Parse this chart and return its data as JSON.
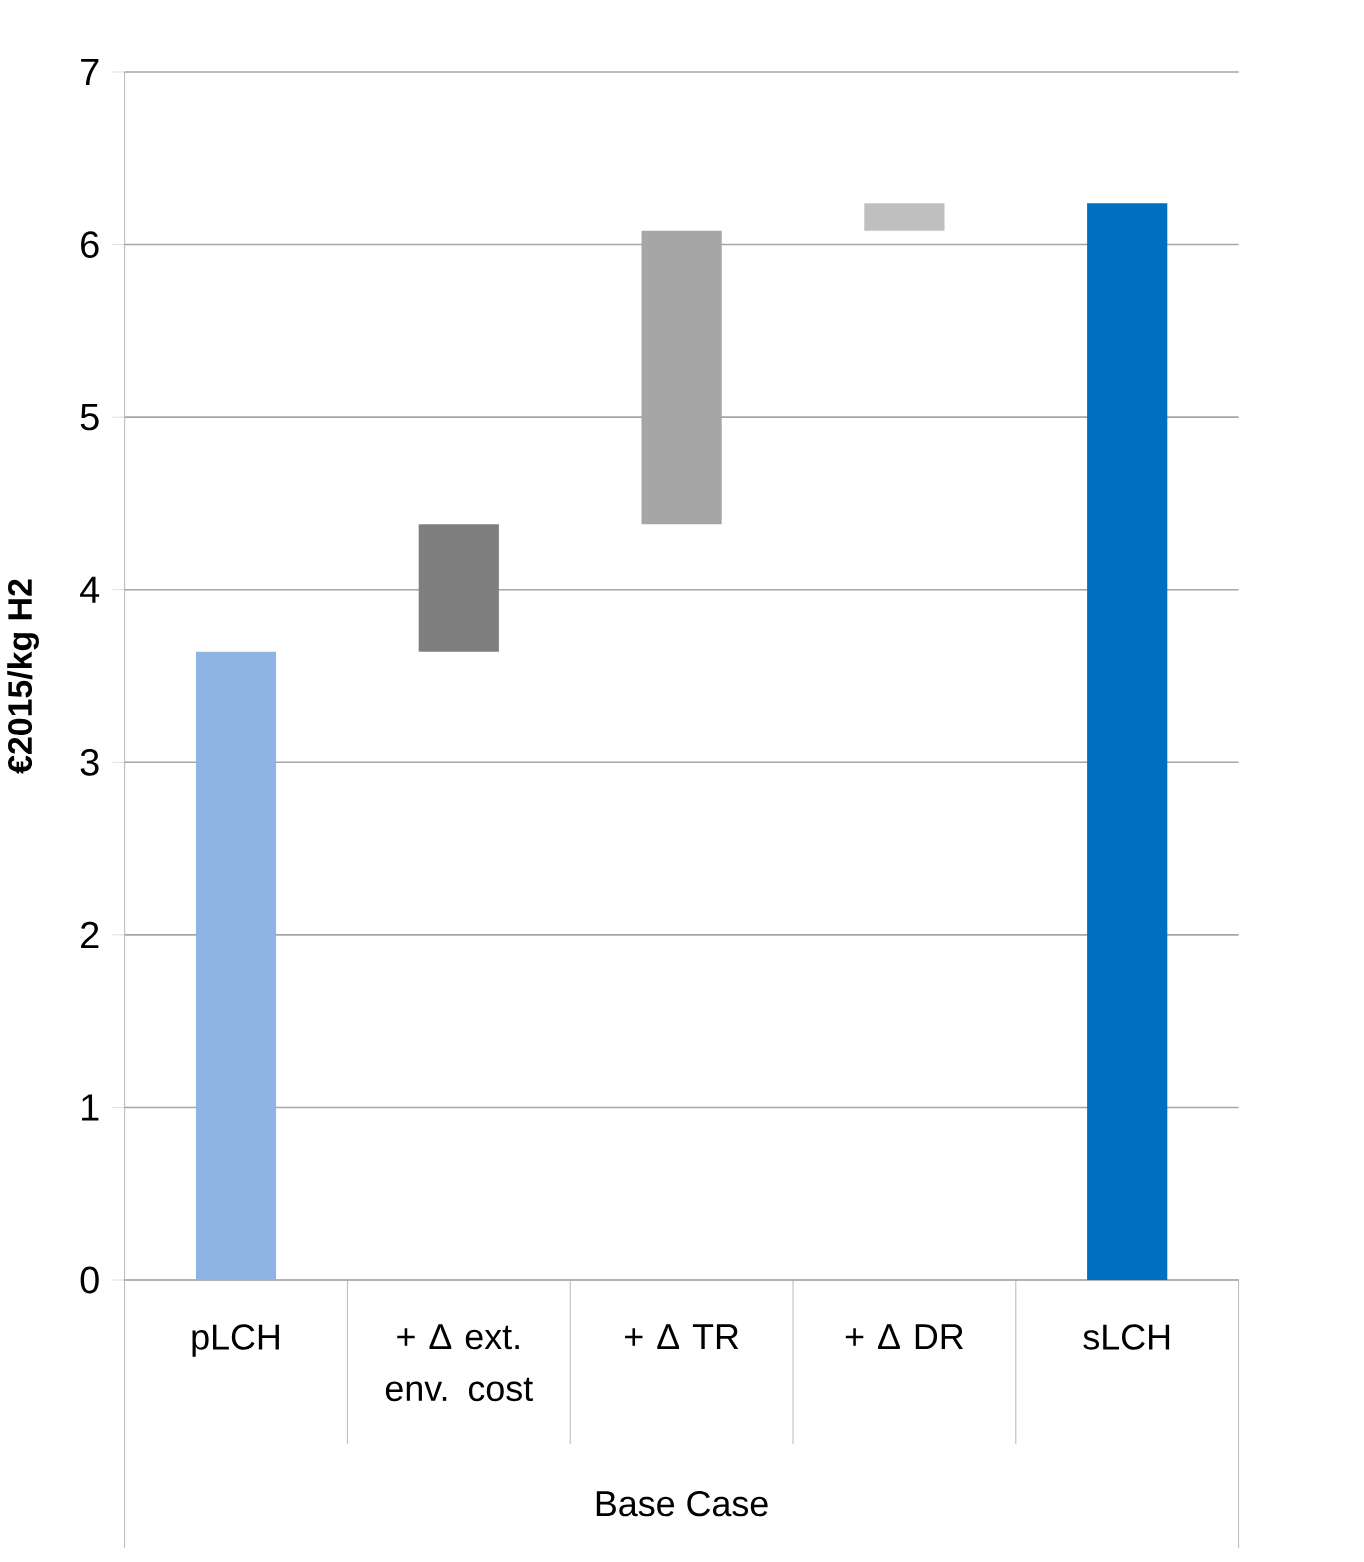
{
  "chart_data": {
    "type": "bar",
    "categories": [
      "pLCH",
      "+ Δ ext. env. cost",
      "+ Δ TR",
      "+ Δ DR",
      "sLCH"
    ],
    "values": [
      3.64,
      0.74,
      1.7,
      0.16,
      6.24
    ],
    "base": [
      0,
      3.64,
      4.38,
      6.08,
      0
    ],
    "colors": [
      "#8eb4e3",
      "#7f7f7f",
      "#a6a6a6",
      "#bfbfbf",
      "#0070c0"
    ],
    "ylabel": "€2015/kg H2",
    "xlabel": "Base Case",
    "ylim": [
      0,
      7
    ],
    "yticks": [
      0,
      1,
      2,
      3,
      4,
      5,
      6,
      7
    ],
    "grid": "y"
  }
}
